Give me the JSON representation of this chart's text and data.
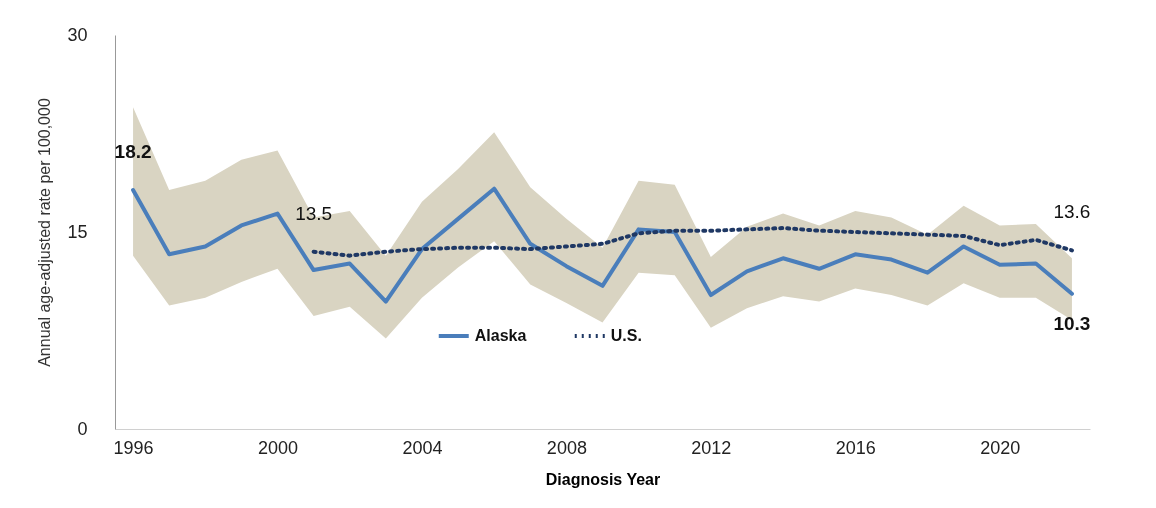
{
  "chart_data": {
    "type": "line",
    "xlabel": "Diagnosis Year",
    "ylabel": "Annual age-adjusted rate per 100,000",
    "x": [
      1996,
      1997,
      1998,
      1999,
      2000,
      2001,
      2002,
      2003,
      2004,
      2005,
      2006,
      2007,
      2008,
      2009,
      2010,
      2011,
      2012,
      2013,
      2014,
      2015,
      2016,
      2017,
      2018,
      2019,
      2020,
      2021,
      2022
    ],
    "series": [
      {
        "name": "Alaska",
        "color": "#4a7ebb",
        "line_style": "solid",
        "values": [
          18.2,
          13.3,
          13.9,
          15.5,
          16.4,
          12.1,
          12.6,
          9.7,
          13.7,
          16.0,
          18.3,
          14.1,
          12.4,
          10.9,
          15.2,
          15.0,
          10.2,
          12.0,
          13.0,
          12.2,
          13.3,
          12.9,
          11.9,
          13.9,
          12.5,
          12.6,
          10.3
        ],
        "lower": [
          13.2,
          9.4,
          10.0,
          11.2,
          12.2,
          8.6,
          9.3,
          6.9,
          10.0,
          12.3,
          14.3,
          11.0,
          9.6,
          8.1,
          11.9,
          11.7,
          7.7,
          9.2,
          10.1,
          9.7,
          10.7,
          10.2,
          9.4,
          11.1,
          10.0,
          10.0,
          8.3
        ],
        "upper": [
          24.5,
          18.2,
          18.9,
          20.5,
          21.2,
          16.1,
          16.6,
          13.2,
          17.3,
          19.8,
          22.6,
          18.4,
          16.0,
          13.8,
          18.9,
          18.6,
          13.1,
          15.4,
          16.4,
          15.5,
          16.6,
          16.1,
          14.8,
          17.0,
          15.5,
          15.6,
          13.0
        ],
        "value_labels": [
          "18.2",
          null,
          null,
          null,
          null,
          null,
          null,
          null,
          null,
          null,
          null,
          null,
          null,
          null,
          null,
          null,
          null,
          null,
          null,
          null,
          null,
          null,
          null,
          null,
          null,
          null,
          "10.3"
        ]
      },
      {
        "name": "U.S.",
        "color": "#1f3864",
        "line_style": "dotted",
        "values": [
          null,
          null,
          null,
          null,
          null,
          13.5,
          13.2,
          13.5,
          13.7,
          13.8,
          13.8,
          13.7,
          13.9,
          14.1,
          14.9,
          15.1,
          15.1,
          15.2,
          15.3,
          15.1,
          15.0,
          14.9,
          14.8,
          14.7,
          14.0,
          14.4,
          13.6
        ],
        "value_labels": [
          null,
          null,
          null,
          null,
          null,
          "13.5",
          null,
          null,
          null,
          null,
          null,
          null,
          null,
          null,
          null,
          null,
          null,
          null,
          null,
          null,
          null,
          null,
          null,
          null,
          null,
          null,
          "13.6"
        ]
      }
    ],
    "xlim": [
      1995.5,
      2022.5
    ],
    "xticks": [
      1996,
      2000,
      2004,
      2008,
      2012,
      2016,
      2020
    ],
    "ylim": [
      0,
      30
    ],
    "yticks": [
      0,
      15,
      30
    ],
    "legend": "bottom",
    "grid": false
  }
}
